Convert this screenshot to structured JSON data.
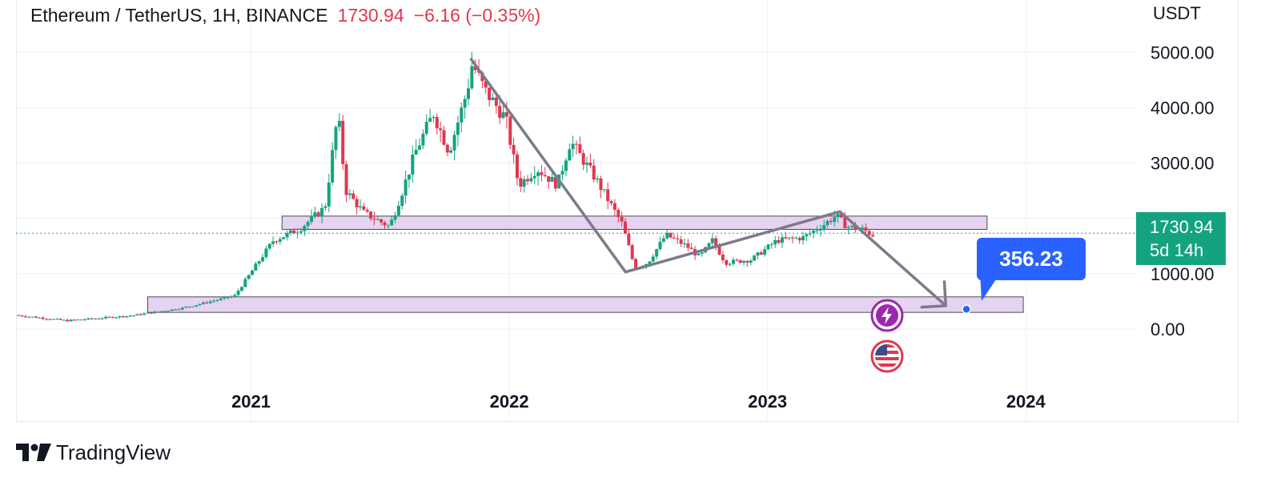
{
  "header": {
    "symbol": "Ethereum / TetherUS, 1H, BINANCE",
    "last_price": "1730.94",
    "change": "−6.16 (−0.35%)"
  },
  "currency": "USDT",
  "last_badge": {
    "price": "1730.94",
    "countdown": "5d 14h"
  },
  "target": {
    "label": "356.23",
    "value": 356.23
  },
  "brand": "TradingView",
  "colors": {
    "up": "#14a37f",
    "down": "#e0374f",
    "zone_fill": "#e5d3ef",
    "arrow": "#7b7b8c",
    "target": "#2962ff"
  },
  "chart_data": {
    "type": "candlestick",
    "y_axis": {
      "labels": [
        "5000.00",
        "4000.00",
        "3000.00",
        "2000.00",
        "1000.00",
        "0.00"
      ],
      "values": [
        5000,
        4000,
        3000,
        2000,
        1000,
        0
      ],
      "ylim": [
        -1000,
        5800
      ]
    },
    "x_axis": {
      "labels": [
        "2021",
        "2022",
        "2023",
        "2024"
      ],
      "values": [
        2021.0,
        2022.0,
        2023.0,
        2024.0
      ],
      "xlim": [
        2020.09,
        2024.43
      ]
    },
    "last_price": 1730.94,
    "price_path": [
      [
        2020.1,
        250
      ],
      [
        2020.3,
        150
      ],
      [
        2020.55,
        240
      ],
      [
        2020.75,
        380
      ],
      [
        2020.95,
        600
      ],
      [
        2021.1,
        1600
      ],
      [
        2021.2,
        1800
      ],
      [
        2021.3,
        2200
      ],
      [
        2021.35,
        3900
      ],
      [
        2021.38,
        2500
      ],
      [
        2021.45,
        2100
      ],
      [
        2021.55,
        1850
      ],
      [
        2021.6,
        2500
      ],
      [
        2021.65,
        3200
      ],
      [
        2021.72,
        3900
      ],
      [
        2021.78,
        3200
      ],
      [
        2021.85,
        4300
      ],
      [
        2021.87,
        4800
      ],
      [
        2021.92,
        4300
      ],
      [
        2022.0,
        3800
      ],
      [
        2022.05,
        2600
      ],
      [
        2022.12,
        2900
      ],
      [
        2022.2,
        2600
      ],
      [
        2022.25,
        3400
      ],
      [
        2022.35,
        2700
      ],
      [
        2022.45,
        1900
      ],
      [
        2022.5,
        1100
      ],
      [
        2022.55,
        1200
      ],
      [
        2022.62,
        1700
      ],
      [
        2022.7,
        1500
      ],
      [
        2022.75,
        1300
      ],
      [
        2022.8,
        1600
      ],
      [
        2022.85,
        1200
      ],
      [
        2022.95,
        1250
      ],
      [
        2023.05,
        1600
      ],
      [
        2023.15,
        1650
      ],
      [
        2023.22,
        1850
      ],
      [
        2023.28,
        2050
      ],
      [
        2023.32,
        1850
      ],
      [
        2023.38,
        1800
      ],
      [
        2023.42,
        1700
      ]
    ],
    "zones": [
      {
        "x_start": 2021.12,
        "x_end": 2023.85,
        "y_low": 1800,
        "y_high": 2040
      },
      {
        "x_start": 2020.6,
        "x_end": 2023.99,
        "y_low": 300,
        "y_high": 580
      }
    ],
    "trend_lines": [
      [
        [
          2021.85,
          4890
        ],
        [
          2022.45,
          1030
        ],
        [
          2023.28,
          2120
        ],
        [
          2023.69,
          420
        ]
      ]
    ]
  }
}
